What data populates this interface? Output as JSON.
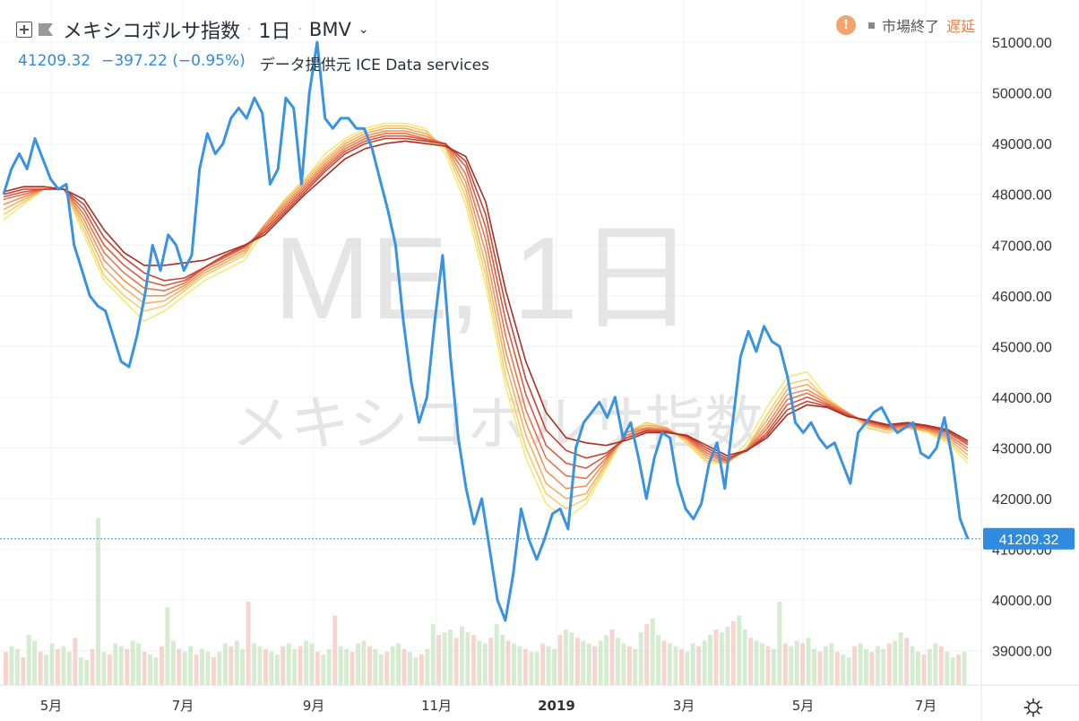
{
  "header": {
    "symbol": "メキシコボルサ指数",
    "interval": "1日",
    "exchange": "BMV",
    "last_price": "41209.32",
    "change": "−397.22",
    "change_pct": "(−0.95%)",
    "source": "データ提供元 ICE Data services"
  },
  "status": {
    "warn_icon": "!",
    "market_status": "市場終了",
    "delay": "遅延"
  },
  "watermark": {
    "main": "ME, 1日",
    "sub": "メキシコボルサ指数"
  },
  "colors": {
    "price_line": "#3a93e0",
    "ribbon": [
      "#f4ea7a",
      "#f5cf6e",
      "#f4b163",
      "#ef9358",
      "#e8764d",
      "#dc5a40",
      "#c84432",
      "#a82f22"
    ],
    "volume_up": "#b9e0b0",
    "volume_down": "#f1b7b0",
    "price_label_bg": "#2e8be0"
  },
  "chart_data": {
    "type": "line",
    "title": "メキシコボルサ指数",
    "x_tick_labels": [
      "5月",
      "7月",
      "9月",
      "11月",
      "2019",
      "3月",
      "5月",
      "7月"
    ],
    "y_tick_labels": [
      "39000.00",
      "40000.00",
      "41000.00",
      "42000.00",
      "43000.00",
      "44000.00",
      "45000.00",
      "46000.00",
      "47000.00",
      "48000.00",
      "49000.00",
      "50000.00",
      "51000.00"
    ],
    "ylim": [
      38400,
      51500
    ],
    "last_value_label": "41209.32",
    "series": [
      {
        "role": "price",
        "values": [
          48000,
          48500,
          48800,
          48500,
          49100,
          48700,
          48300,
          48100,
          48200,
          47000,
          46500,
          46000,
          45800,
          45700,
          45200,
          44700,
          44600,
          45200,
          46000,
          47000,
          46500,
          47200,
          47000,
          46500,
          46800,
          48500,
          49200,
          48800,
          49000,
          49500,
          49700,
          49500,
          49900,
          49600,
          48200,
          48500,
          49900,
          49700,
          48200,
          50000,
          51000,
          49500,
          49300,
          49500,
          49500,
          49300,
          49300,
          48900,
          48300,
          47700,
          47000,
          45500,
          44300,
          43500,
          44000,
          45500,
          46800,
          44800,
          43200,
          42200,
          41500,
          42000,
          41000,
          40000,
          39600,
          40500,
          41800,
          41200,
          40800,
          41200,
          41700,
          41800,
          41400,
          43000,
          43500,
          43700,
          43900,
          43600,
          44000,
          43200,
          43500,
          42800,
          42000,
          42800,
          43300,
          43200,
          42300,
          41800,
          41600,
          41900,
          42700,
          43100,
          42200,
          43500,
          44800,
          45300,
          44900,
          45400,
          45100,
          45000,
          44400,
          43500,
          43300,
          43500,
          43200,
          43000,
          43100,
          42700,
          42300,
          43300,
          43500,
          43700,
          43800,
          43500,
          43300,
          43400,
          43500,
          42900,
          42800,
          43000,
          43600,
          42800,
          41600,
          41209
        ]
      },
      {
        "role": "ma",
        "values": [
          47500,
          47800,
          48100,
          48100,
          47200,
          46300,
          45900,
          45500,
          45700,
          46000,
          46300,
          46500,
          46700,
          47300,
          47900,
          48300,
          48800,
          49100,
          49300,
          49400,
          49400,
          49300,
          48800,
          47800,
          46200,
          44200,
          42800,
          41900,
          41600,
          41900,
          42600,
          43300,
          43500,
          43400,
          43100,
          42700,
          42700,
          43100,
          43800,
          44400,
          44500,
          44000,
          43700,
          43400,
          43300,
          43400,
          43300,
          43100,
          42700
        ]
      },
      {
        "role": "ma",
        "values": [
          47600,
          47850,
          48100,
          48100,
          47300,
          46400,
          46000,
          45700,
          45800,
          46100,
          46400,
          46600,
          46800,
          47400,
          47900,
          48300,
          48700,
          49050,
          49250,
          49350,
          49350,
          49250,
          48900,
          47950,
          46400,
          44400,
          43000,
          42100,
          41800,
          42000,
          42650,
          43300,
          43500,
          43400,
          43100,
          42750,
          42700,
          43000,
          43650,
          44250,
          44350,
          43950,
          43700,
          43400,
          43300,
          43400,
          43320,
          43140,
          42780
        ]
      },
      {
        "role": "ma",
        "values": [
          47700,
          47900,
          48100,
          48100,
          47400,
          46550,
          46150,
          45850,
          45900,
          46150,
          46450,
          46650,
          46850,
          47400,
          47850,
          48250,
          48650,
          49000,
          49200,
          49300,
          49300,
          49200,
          48950,
          48100,
          46600,
          44650,
          43250,
          42300,
          42000,
          42100,
          42700,
          43300,
          43450,
          43400,
          43150,
          42800,
          42700,
          43000,
          43550,
          44150,
          44250,
          43950,
          43700,
          43450,
          43350,
          43400,
          43340,
          43180,
          42860
        ]
      },
      {
        "role": "ma",
        "values": [
          47800,
          47950,
          48100,
          48100,
          47500,
          46700,
          46300,
          46000,
          46000,
          46200,
          46500,
          46700,
          46900,
          47400,
          47800,
          48200,
          48600,
          48950,
          49150,
          49250,
          49250,
          49150,
          48980,
          48250,
          46850,
          44900,
          43500,
          42550,
          42200,
          42250,
          42750,
          43300,
          43400,
          43380,
          43180,
          42850,
          42720,
          42980,
          43450,
          44050,
          44150,
          43920,
          43700,
          43480,
          43380,
          43420,
          43360,
          43220,
          42940
        ]
      },
      {
        "role": "ma",
        "values": [
          47900,
          48000,
          48100,
          48100,
          47600,
          46850,
          46450,
          46150,
          46100,
          46250,
          46550,
          46750,
          46950,
          47350,
          47750,
          48150,
          48550,
          48900,
          49100,
          49200,
          49200,
          49100,
          49000,
          48400,
          47100,
          45200,
          43750,
          42800,
          42450,
          42400,
          42800,
          43250,
          43380,
          43350,
          43200,
          42900,
          42740,
          42960,
          43380,
          43950,
          44080,
          43880,
          43680,
          43500,
          43400,
          43440,
          43380,
          43260,
          43000
        ]
      },
      {
        "role": "ma",
        "values": [
          47950,
          48050,
          48100,
          48100,
          47700,
          47000,
          46600,
          46300,
          46200,
          46300,
          46550,
          46780,
          46970,
          47300,
          47700,
          48100,
          48500,
          48850,
          49050,
          49150,
          49150,
          49080,
          49000,
          48550,
          47350,
          45500,
          44050,
          43050,
          42700,
          42600,
          42850,
          43200,
          43350,
          43330,
          43220,
          42950,
          42760,
          42950,
          43300,
          43850,
          44000,
          43850,
          43660,
          43520,
          43420,
          43460,
          43400,
          43300,
          43060
        ]
      },
      {
        "role": "ma",
        "values": [
          48000,
          48100,
          48100,
          48100,
          47800,
          47150,
          46750,
          46450,
          46300,
          46350,
          46560,
          46800,
          46990,
          47250,
          47650,
          48050,
          48450,
          48800,
          49000,
          49100,
          49100,
          49050,
          48990,
          48650,
          47600,
          45800,
          44350,
          43350,
          42950,
          42800,
          42900,
          43200,
          43330,
          43320,
          43240,
          43000,
          42800,
          42940,
          43250,
          43750,
          43920,
          43820,
          43640,
          43540,
          43440,
          43480,
          43420,
          43330,
          43100
        ]
      },
      {
        "role": "ma",
        "values": [
          48050,
          48150,
          48150,
          48100,
          47900,
          47300,
          46850,
          46600,
          46600,
          46650,
          46700,
          46850,
          47000,
          47200,
          47600,
          48000,
          48350,
          48700,
          48900,
          49000,
          49050,
          49000,
          48950,
          48750,
          47850,
          46100,
          44700,
          43700,
          43200,
          43100,
          43050,
          43150,
          43300,
          43300,
          43250,
          43050,
          42850,
          42950,
          43200,
          43650,
          43850,
          43800,
          43620,
          43550,
          43460,
          43500,
          43440,
          43360,
          43140
        ]
      }
    ],
    "volume": [
      12,
      14,
      13,
      10,
      18,
      16,
      12,
      11,
      15,
      13,
      14,
      12,
      17,
      10,
      9,
      13,
      60,
      12,
      11,
      15,
      14,
      13,
      16,
      15,
      12,
      11,
      10,
      14,
      28,
      16,
      13,
      12,
      14,
      11,
      13,
      12,
      10,
      12,
      15,
      14,
      16,
      13,
      30,
      15,
      14,
      13,
      12,
      11,
      14,
      15,
      13,
      14,
      16,
      15,
      12,
      11,
      13,
      25,
      14,
      13,
      12,
      15,
      16,
      14,
      13,
      11,
      12,
      14,
      15,
      13,
      12,
      10,
      11,
      13,
      22,
      18,
      19,
      20,
      17,
      21,
      19,
      18,
      16,
      15,
      17,
      22,
      18,
      16,
      15,
      14,
      13,
      12,
      12,
      15,
      14,
      13,
      18,
      20,
      19,
      17,
      16,
      15,
      14,
      16,
      18,
      20,
      17,
      15,
      14,
      13,
      19,
      22,
      24,
      18,
      16,
      15,
      14,
      13,
      12,
      15,
      14,
      16,
      18,
      20,
      19,
      21,
      23,
      25,
      20,
      17,
      16,
      15,
      14,
      13,
      30,
      15,
      14,
      16,
      15,
      17,
      13,
      12,
      14,
      15,
      12,
      11,
      10,
      14,
      15,
      13,
      12,
      14,
      13,
      15,
      16,
      19,
      17,
      14,
      12,
      11,
      13,
      15,
      14,
      12,
      10,
      11,
      12
    ]
  }
}
